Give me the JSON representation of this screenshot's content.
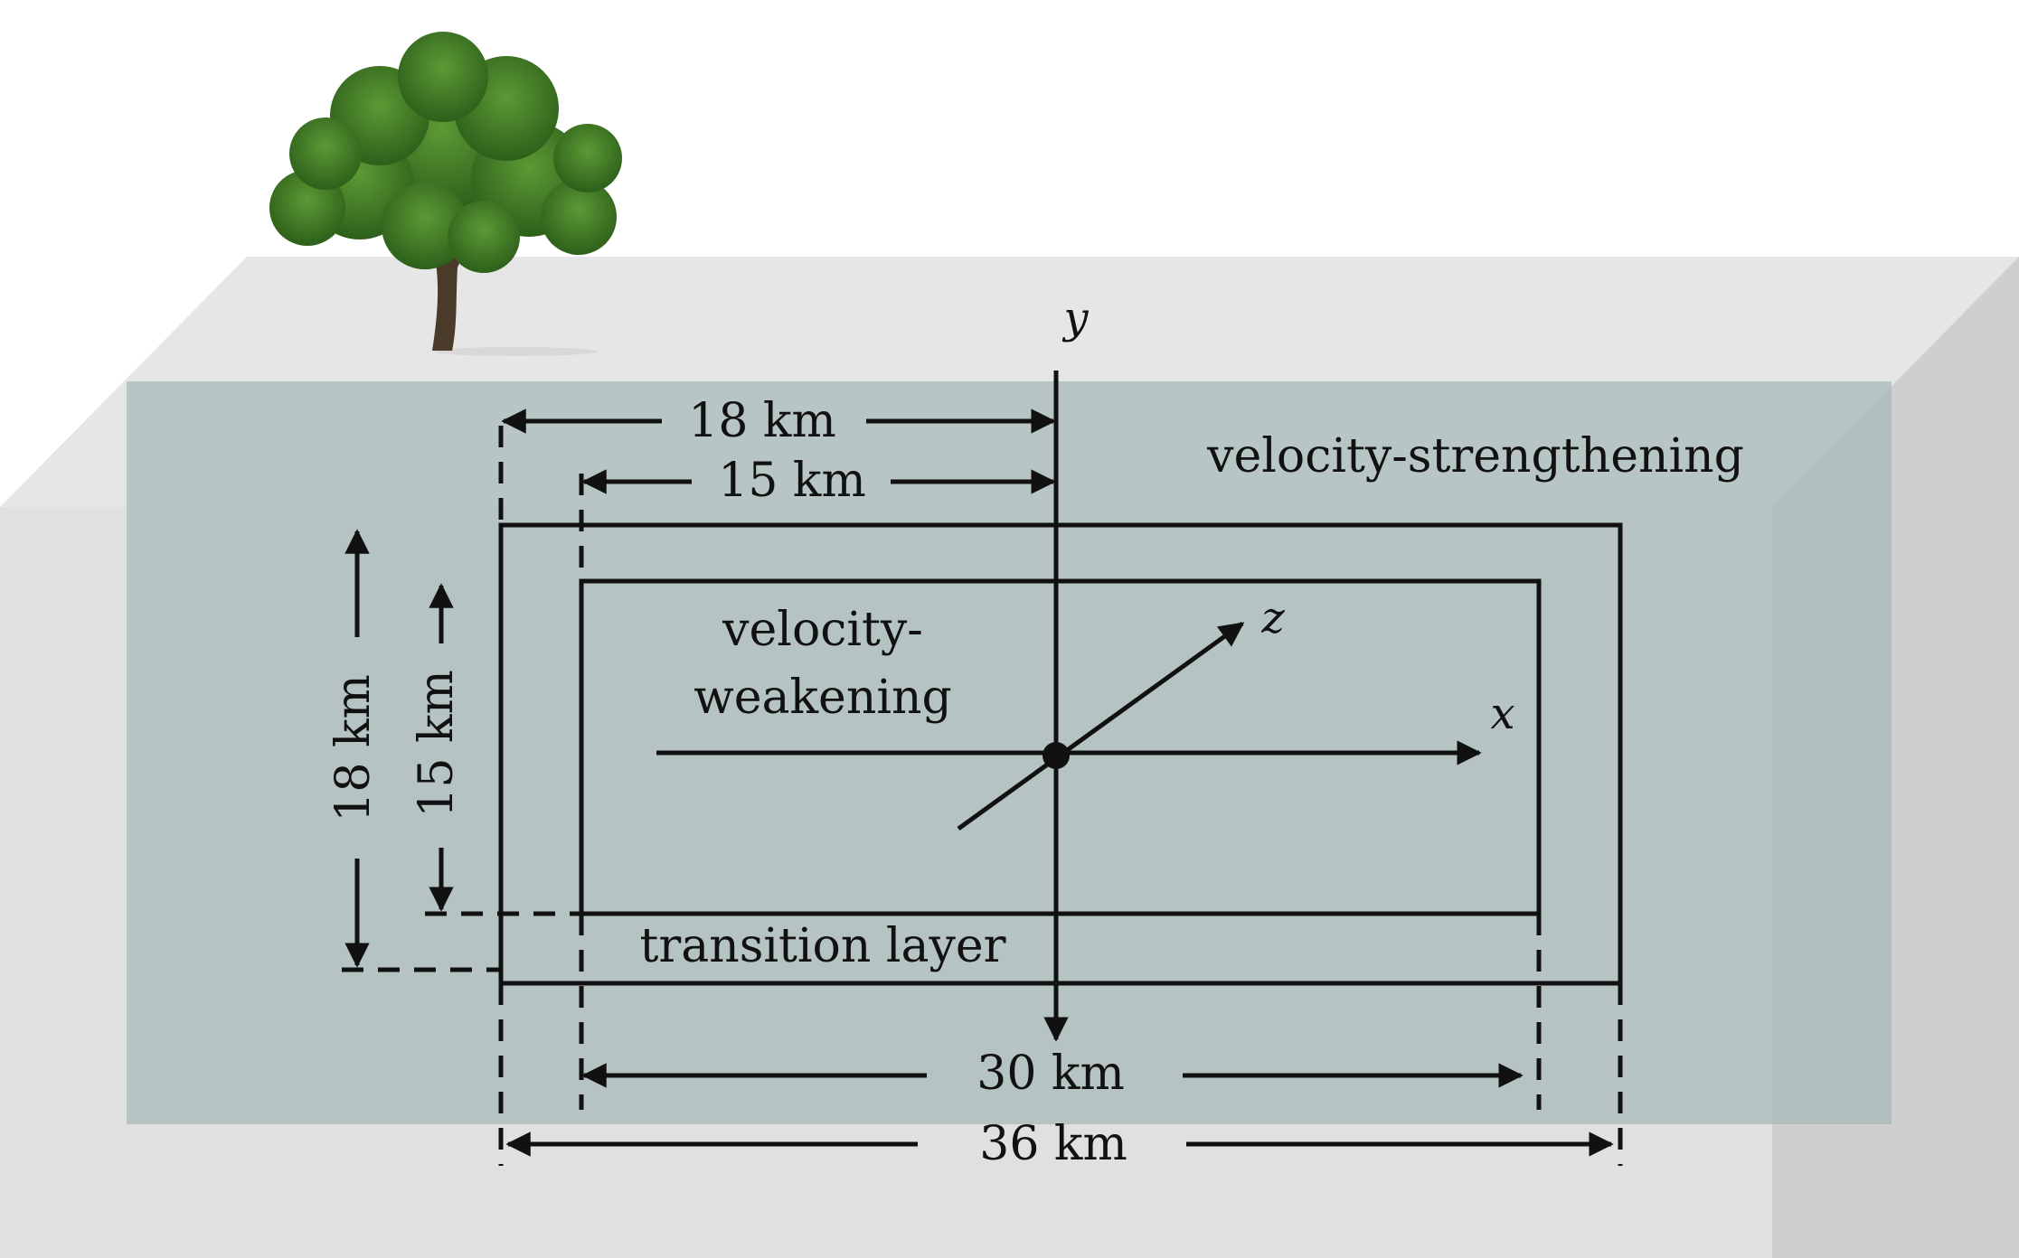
{
  "labels": {
    "velocity_strengthening": "velocity-strengthening",
    "velocity_weakening_line1": "velocity-",
    "velocity_weakening_line2": "weakening",
    "transition_layer": "transition layer"
  },
  "axes": {
    "x": "x",
    "y": "y",
    "z": "z"
  },
  "dimensions": {
    "half_width_outer": "18 km",
    "half_width_inner": "15 km",
    "depth_outer": "18 km",
    "depth_inner": "15 km",
    "length_inner": "30 km",
    "length_outer": "36 km"
  },
  "colors": {
    "block_top": "#e6e6e6",
    "block_side": "#cfcfcf",
    "block_front": "#e0e0e0",
    "fault_plane": "#a7bab8",
    "lines": "#111111",
    "tree_foliage": "#3f7a25",
    "tree_trunk": "#4a3a2a"
  }
}
